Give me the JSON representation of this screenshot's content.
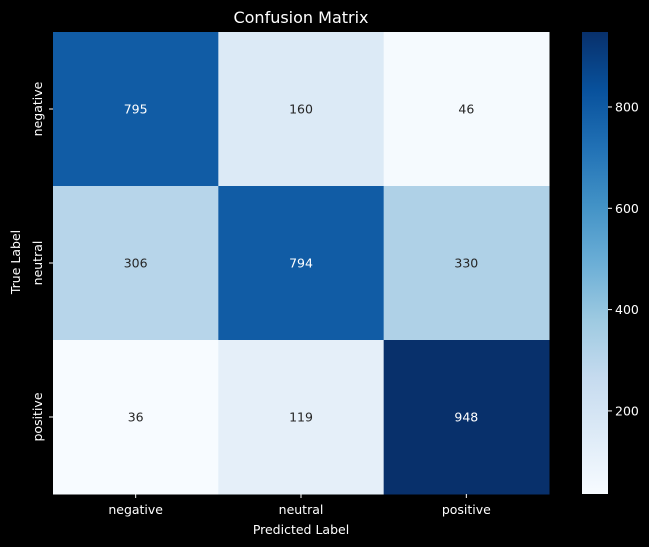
{
  "chart_data": {
    "type": "heatmap",
    "title": "Confusion Matrix",
    "xlabel": "Predicted Label",
    "ylabel": "True Label",
    "x_categories": [
      "negative",
      "neutral",
      "positive"
    ],
    "y_categories": [
      "negative",
      "neutral",
      "positive"
    ],
    "values": [
      [
        795,
        160,
        46
      ],
      [
        306,
        794,
        330
      ],
      [
        36,
        119,
        948
      ]
    ],
    "colormap": "Blues",
    "color_range": [
      36,
      948
    ],
    "colorbar_ticks": [
      "200",
      "400",
      "600",
      "800"
    ],
    "colorbar_tick_values": [
      200,
      400,
      600,
      800
    ],
    "background": "#000000",
    "text_color": "#ffffff"
  }
}
